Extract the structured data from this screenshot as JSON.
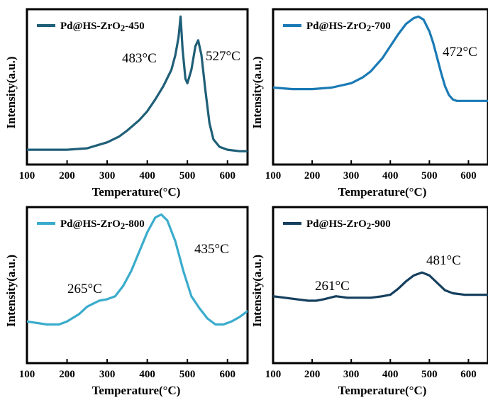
{
  "chart_data": [
    {
      "type": "line",
      "series": [
        {
          "name": "Pd@HS-ZrO2-450",
          "color": "#1f5f78",
          "x": [
            100,
            150,
            200,
            250,
            300,
            330,
            350,
            380,
            400,
            420,
            440,
            460,
            470,
            478,
            483,
            488,
            495,
            500,
            510,
            520,
            527,
            535,
            545,
            555,
            565,
            580,
            600,
            630,
            650
          ],
          "y": [
            0.1,
            0.1,
            0.1,
            0.11,
            0.15,
            0.19,
            0.23,
            0.3,
            0.36,
            0.44,
            0.53,
            0.64,
            0.74,
            0.86,
            1.0,
            0.78,
            0.58,
            0.55,
            0.64,
            0.8,
            0.84,
            0.74,
            0.5,
            0.28,
            0.17,
            0.12,
            0.1,
            0.09,
            0.09
          ]
        }
      ],
      "xlabel": "Temperature(°C)",
      "ylabel": "Intensity(a.u.)",
      "xlim": [
        100,
        650
      ],
      "xticks": [
        100,
        200,
        300,
        400,
        500,
        600
      ],
      "ylim": [
        0,
        1.05
      ],
      "legend": "top-left",
      "annotations": [
        {
          "text": "483°C",
          "x": 483
        },
        {
          "text": "527°C",
          "x": 527
        }
      ]
    },
    {
      "type": "line",
      "series": [
        {
          "name": "Pd@HS-ZrO2-700",
          "color": "#1a7ab5",
          "x": [
            100,
            150,
            200,
            250,
            300,
            330,
            350,
            380,
            400,
            420,
            440,
            460,
            472,
            485,
            500,
            510,
            520,
            530,
            540,
            550,
            560,
            570,
            580,
            600,
            630,
            650
          ],
          "y": [
            0.52,
            0.51,
            0.51,
            0.52,
            0.55,
            0.59,
            0.63,
            0.72,
            0.8,
            0.88,
            0.95,
            0.99,
            1.0,
            0.98,
            0.9,
            0.82,
            0.72,
            0.62,
            0.53,
            0.47,
            0.44,
            0.43,
            0.43,
            0.43,
            0.43,
            0.43
          ]
        }
      ],
      "xlabel": "Temperature(°C)",
      "ylabel": "Intensity(a.u.)",
      "xlim": [
        100,
        650
      ],
      "xticks": [
        100,
        200,
        300,
        400,
        500,
        600
      ],
      "ylim": [
        0,
        1.05
      ],
      "legend": "top-left",
      "annotations": [
        {
          "text": "472°C",
          "x": 472
        }
      ]
    },
    {
      "type": "line",
      "series": [
        {
          "name": "Pd@HS-ZrO2-800",
          "color": "#3aaccc",
          "x": [
            100,
            150,
            180,
            200,
            230,
            250,
            265,
            280,
            300,
            320,
            340,
            360,
            380,
            400,
            420,
            435,
            450,
            470,
            490,
            510,
            530,
            550,
            570,
            590,
            610,
            630,
            650
          ],
          "y": [
            0.28,
            0.26,
            0.26,
            0.28,
            0.33,
            0.38,
            0.4,
            0.42,
            0.43,
            0.45,
            0.52,
            0.62,
            0.75,
            0.88,
            0.98,
            1.0,
            0.96,
            0.82,
            0.62,
            0.45,
            0.37,
            0.3,
            0.26,
            0.26,
            0.28,
            0.31,
            0.35
          ]
        }
      ],
      "xlabel": "Temperature(°C)",
      "ylabel": "Intensity(a.u.)",
      "xlim": [
        100,
        650
      ],
      "xticks": [
        100,
        200,
        300,
        400,
        500,
        600
      ],
      "ylim": [
        0,
        1.05
      ],
      "legend": "top-left",
      "annotations": [
        {
          "text": "265°C",
          "x": 265
        },
        {
          "text": "435°C",
          "x": 435
        }
      ]
    },
    {
      "type": "line",
      "series": [
        {
          "name": "Pd@HS-ZrO2-900",
          "color": "#153f5e",
          "x": [
            100,
            130,
            160,
            190,
            210,
            230,
            261,
            290,
            320,
            350,
            380,
            400,
            420,
            440,
            460,
            481,
            500,
            520,
            540,
            560,
            590,
            620,
            650
          ],
          "y": [
            0.45,
            0.44,
            0.43,
            0.42,
            0.42,
            0.43,
            0.45,
            0.44,
            0.44,
            0.44,
            0.45,
            0.46,
            0.5,
            0.55,
            0.59,
            0.61,
            0.59,
            0.54,
            0.49,
            0.47,
            0.46,
            0.46,
            0.46
          ]
        }
      ],
      "xlabel": "Temperature(°C)",
      "ylabel": "Intensity(a.u.)",
      "xlim": [
        100,
        650
      ],
      "xticks": [
        100,
        200,
        300,
        400,
        500,
        600
      ],
      "ylim": [
        0,
        1.05
      ],
      "legend": "top-left",
      "annotations": [
        {
          "text": "261°C",
          "x": 261
        },
        {
          "text": "481°C",
          "x": 481
        }
      ]
    }
  ]
}
